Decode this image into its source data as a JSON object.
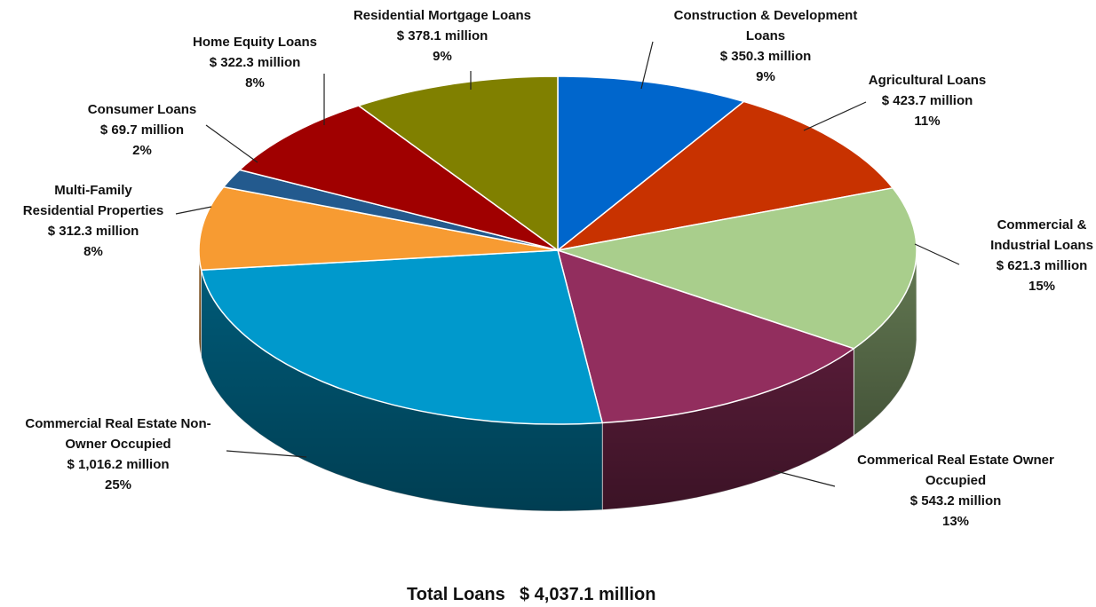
{
  "chart_data": {
    "type": "pie",
    "style": "3d",
    "unit": "million",
    "total_label": "Total Loans",
    "total_value": "$ 4,037.1 million",
    "slices": [
      {
        "label": [
          "Construction & Development",
          "Loans"
        ],
        "amount": "$ 350.3 million",
        "value": 350.3,
        "percent": "9%",
        "color": "#0066CC"
      },
      {
        "label": [
          "Agricultural Loans"
        ],
        "amount": "$ 423.7 million",
        "value": 423.7,
        "percent": "11%",
        "color": "#C83200"
      },
      {
        "label": [
          "Commercial &",
          "Industrial Loans"
        ],
        "amount": "$ 621.3 million",
        "value": 621.3,
        "percent": "15%",
        "color": "#A9CE8C"
      },
      {
        "label": [
          "Commerical Real Estate Owner",
          "Occupied"
        ],
        "amount": "$ 543.2 million",
        "value": 543.2,
        "percent": "13%",
        "color": "#922E5E"
      },
      {
        "label": [
          "Commercial Real Estate Non-",
          "Owner Occupied"
        ],
        "amount": "$ 1,016.2 million",
        "value": 1016.2,
        "percent": "25%",
        "color": "#0099CC"
      },
      {
        "label": [
          "Multi-Family",
          "Residential Properties"
        ],
        "amount": "$ 312.3 million",
        "value": 312.3,
        "percent": "8%",
        "color": "#F79B32"
      },
      {
        "label": [
          "Consumer Loans"
        ],
        "amount": "$ 69.7 million",
        "value": 69.7,
        "percent": "2%",
        "color": "#235A8E"
      },
      {
        "label": [
          "Home Equity Loans"
        ],
        "amount": "$ 322.3 million",
        "value": 322.3,
        "percent": "8%",
        "color": "#A00000"
      },
      {
        "label": [
          "Residential Mortgage Loans"
        ],
        "amount": "$ 378.1 million",
        "value": 378.1,
        "percent": "9%",
        "color": "#808000"
      }
    ]
  }
}
